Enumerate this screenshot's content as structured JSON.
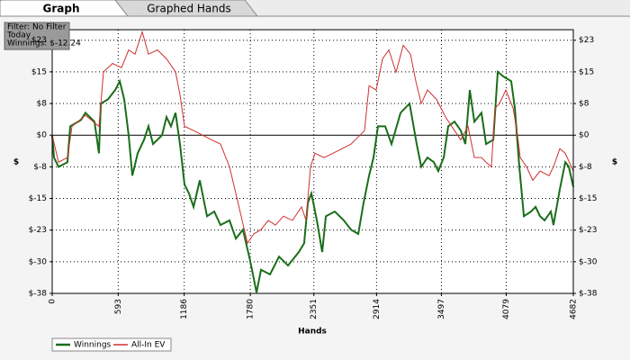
{
  "tabs": [
    "Graph",
    "Graphed Hands"
  ],
  "info_box": [
    "Filter: No Filter",
    "Today",
    "Winnings: $-12.24"
  ],
  "chart_data": {
    "type": "line",
    "x_label": "Hands",
    "y_label": "$",
    "y2_label": "$",
    "xlim": [
      0,
      4682
    ],
    "xticks": [
      0,
      593,
      1186,
      1780,
      2351,
      2914,
      3497,
      4079,
      4682
    ],
    "ylim": [
      -37.5,
      25
    ],
    "yticks": [
      {
        "value": 22.5,
        "label": "$23"
      },
      {
        "value": 15,
        "label": "$15"
      },
      {
        "value": 7.5,
        "label": "$8"
      },
      {
        "value": 0,
        "label": "$0"
      },
      {
        "value": -7.5,
        "label": "$-8"
      },
      {
        "value": -15,
        "label": "$-15"
      },
      {
        "value": -22.5,
        "label": "$-23"
      },
      {
        "value": -30,
        "label": "$-30"
      },
      {
        "value": -37.5,
        "label": "$-38"
      }
    ],
    "grid": true,
    "legend": "bottom-left",
    "series": [
      {
        "name": "Winnings",
        "color": "#1a6e1a",
        "x": [
          0,
          16,
          57,
          137,
          162,
          259,
          299,
          380,
          420,
          437,
          501,
          566,
          607,
          647,
          687,
          720,
          768,
          825,
          865,
          906,
          987,
          1027,
          1067,
          1108,
          1148,
          1189,
          1229,
          1270,
          1326,
          1391,
          1456,
          1512,
          1593,
          1650,
          1714,
          1779,
          1836,
          1876,
          1957,
          2038,
          2119,
          2216,
          2264,
          2297,
          2329,
          2378,
          2426,
          2459,
          2539,
          2620,
          2685,
          2750,
          2798,
          2847,
          2887,
          2927,
          2992,
          3049,
          3130,
          3211,
          3275,
          3316,
          3372,
          3429,
          3469,
          3518,
          3558,
          3615,
          3671,
          3712,
          3752,
          3793,
          3857,
          3898,
          3963,
          4003,
          4060,
          4124,
          4157,
          4197,
          4238,
          4302,
          4343,
          4383,
          4424,
          4480,
          4504,
          4561,
          4610,
          4642,
          4682
        ],
        "values": [
          0,
          -5.3,
          -7.5,
          -6.4,
          2.1,
          3.6,
          5.3,
          3.2,
          -4.3,
          7.5,
          8.5,
          10.7,
          12.8,
          8.5,
          0,
          -9.6,
          -4.3,
          -1.1,
          2.1,
          -2.1,
          0,
          4.3,
          2.1,
          5.3,
          -2.1,
          -11.7,
          -13.8,
          -17,
          -10.7,
          -19.2,
          -18.1,
          -21.3,
          -20.2,
          -24.5,
          -22.4,
          -29.8,
          -37.3,
          -31.9,
          -33,
          -28.8,
          -30.9,
          -27.7,
          -25.6,
          -16,
          -13.8,
          -20.2,
          -27.7,
          -19.2,
          -18.1,
          -20.2,
          -22.4,
          -23.4,
          -16,
          -9.6,
          -5.3,
          2.1,
          2.1,
          -2.1,
          5.3,
          7.5,
          -2.1,
          -7.5,
          -5.3,
          -6.4,
          -8.5,
          -5.3,
          2.1,
          3.2,
          1.1,
          -2.1,
          10.7,
          3.2,
          5.3,
          -2.1,
          -1.1,
          15,
          13.8,
          12.8,
          6.4,
          -7.5,
          -19.2,
          -18.1,
          -17,
          -19.2,
          -20.2,
          -18.1,
          -21.3,
          -12.8,
          -6.4,
          -7.5,
          -12.24
        ]
      },
      {
        "name": "All-In EV",
        "color": "#d03030",
        "x": [
          0,
          57,
          137,
          178,
          299,
          420,
          461,
          542,
          623,
          687,
          744,
          809,
          865,
          946,
          1027,
          1108,
          1148,
          1189,
          1270,
          1351,
          1431,
          1512,
          1593,
          1650,
          1698,
          1755,
          1811,
          1876,
          1941,
          2006,
          2078,
          2159,
          2240,
          2281,
          2321,
          2361,
          2442,
          2523,
          2604,
          2685,
          2766,
          2806,
          2847,
          2911,
          2968,
          3025,
          3089,
          3154,
          3219,
          3267,
          3316,
          3372,
          3453,
          3534,
          3615,
          3671,
          3736,
          3793,
          3857,
          3898,
          3946,
          3979,
          4019,
          4076,
          4141,
          4181,
          4205,
          4262,
          4318,
          4383,
          4464,
          4504,
          4561,
          4610,
          4682
        ],
        "values": [
          0,
          -6.4,
          -5.3,
          2.1,
          4.7,
          2.1,
          15,
          17,
          16,
          20.2,
          19.2,
          24.5,
          19.2,
          20.2,
          18.1,
          15,
          9.6,
          2.1,
          1.1,
          0,
          -1.1,
          -2.1,
          -7.5,
          -13.8,
          -19.2,
          -25.6,
          -23.4,
          -22.4,
          -20.2,
          -21.3,
          -19.2,
          -20.2,
          -17,
          -20.2,
          -7.5,
          -4.3,
          -5.3,
          -4.3,
          -3.2,
          -2.1,
          0,
          1.1,
          11.7,
          10.7,
          18.1,
          20.2,
          14.9,
          21.3,
          19.2,
          12.8,
          7.5,
          10.7,
          8.5,
          4.3,
          1.1,
          -1.1,
          2.1,
          -5.3,
          -5.3,
          -6.4,
          -7.5,
          6.4,
          7.5,
          10.7,
          6.4,
          0,
          -5.3,
          -7.5,
          -10.7,
          -8.5,
          -9.6,
          -7.5,
          -3.2,
          -4.3,
          -8.5
        ]
      }
    ]
  }
}
